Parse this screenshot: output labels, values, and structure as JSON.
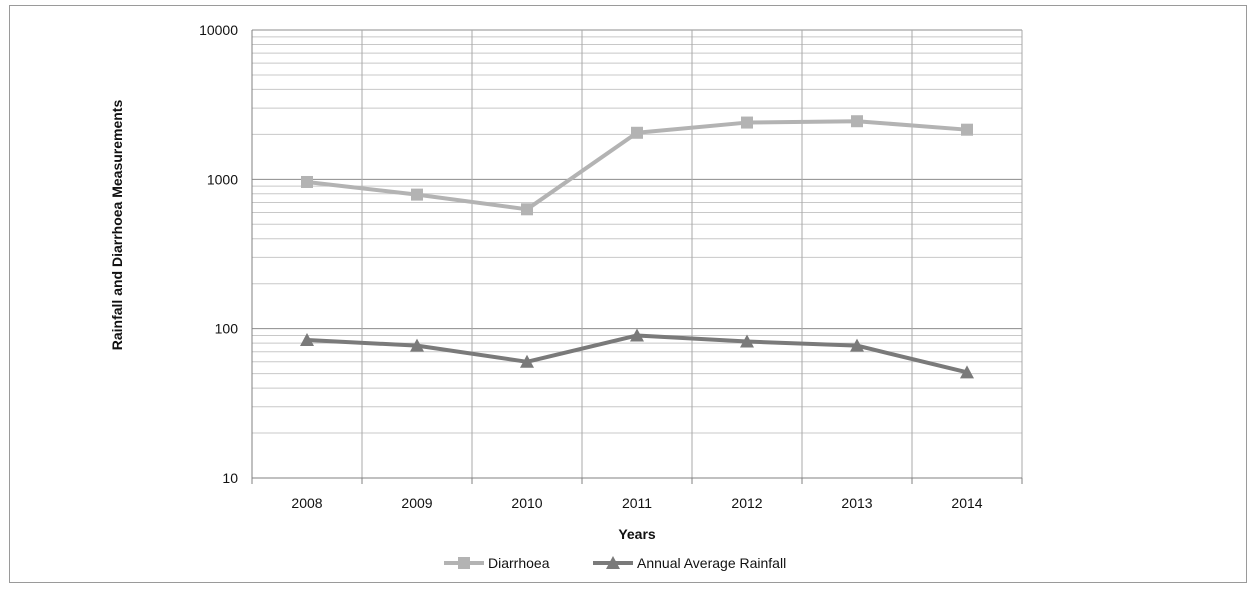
{
  "chart_data": {
    "type": "line",
    "title": "",
    "xlabel": "Years",
    "ylabel": "Rainfall and Diarrhoea Measurements",
    "y_scale": "log",
    "ylim": [
      10,
      10000
    ],
    "y_ticks": [
      "10",
      "100",
      "1000",
      "10000"
    ],
    "grid": true,
    "legend_position": "bottom",
    "categories": [
      "2008",
      "2009",
      "2010",
      "2011",
      "2012",
      "2013",
      "2014"
    ],
    "series": [
      {
        "name": "Diarrhoea",
        "marker": "square",
        "color": "#b3b3b3",
        "values": [
          960,
          790,
          630,
          2050,
          2400,
          2450,
          2150
        ]
      },
      {
        "name": "Annual Average Rainfall",
        "marker": "triangle",
        "color": "#7a7a7a",
        "values": [
          84,
          77,
          60,
          90,
          82,
          77,
          51
        ]
      }
    ]
  }
}
